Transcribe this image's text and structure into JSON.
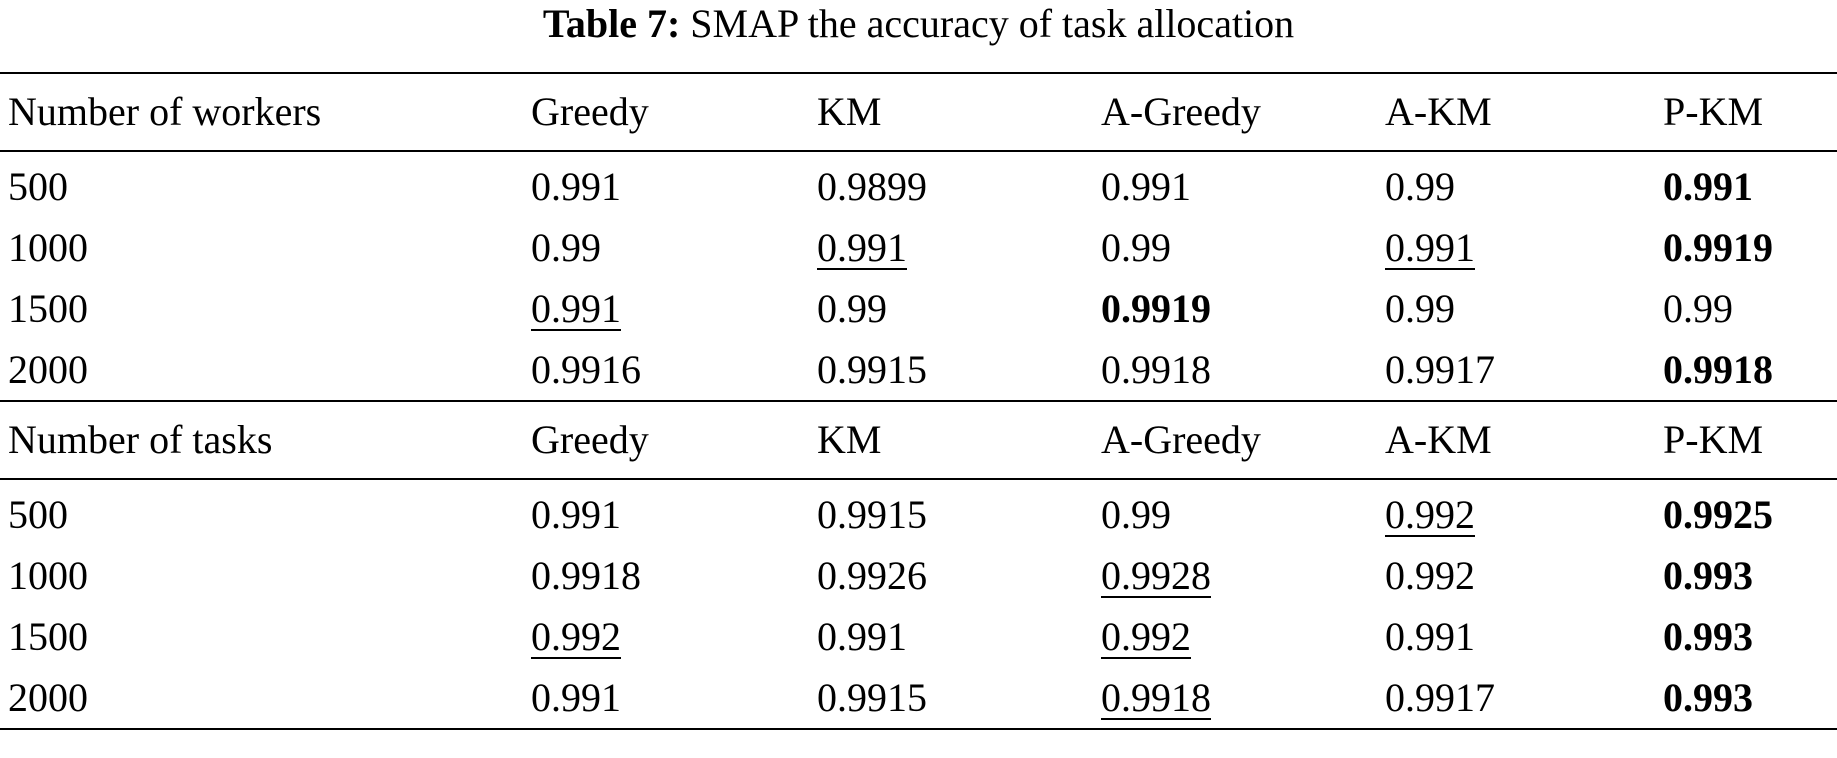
{
  "caption": {
    "label": "Table 7:",
    "text": "SMAP the accuracy of task allocation"
  },
  "table": {
    "groups": [
      {
        "header": [
          "Number of workers",
          "Greedy",
          "KM",
          "A-Greedy",
          "A-KM",
          "P-KM"
        ],
        "rows": [
          {
            "cells": [
              "500",
              "0.991",
              "0.9899",
              "0.991",
              "0.99",
              "0.991"
            ],
            "bold": [
              5
            ],
            "underline": []
          },
          {
            "cells": [
              "1000",
              "0.99",
              "0.991",
              "0.99",
              "0.991",
              "0.9919"
            ],
            "bold": [
              5
            ],
            "underline": [
              2,
              4
            ]
          },
          {
            "cells": [
              "1500",
              "0.991",
              "0.99",
              "0.9919",
              "0.99",
              "0.99"
            ],
            "bold": [
              3
            ],
            "underline": [
              1
            ]
          },
          {
            "cells": [
              "2000",
              "0.9916",
              "0.9915",
              "0.9918",
              "0.9917",
              "0.9918"
            ],
            "bold": [
              5
            ],
            "underline": []
          }
        ]
      },
      {
        "header": [
          "Number of tasks",
          "Greedy",
          "KM",
          "A-Greedy",
          "A-KM",
          "P-KM"
        ],
        "rows": [
          {
            "cells": [
              "500",
              "0.991",
              "0.9915",
              "0.99",
              "0.992",
              "0.9925"
            ],
            "bold": [
              5
            ],
            "underline": [
              4
            ]
          },
          {
            "cells": [
              "1000",
              "0.9918",
              "0.9926",
              "0.9928",
              "0.992",
              "0.993"
            ],
            "bold": [
              5
            ],
            "underline": [
              3
            ]
          },
          {
            "cells": [
              "1500",
              "0.992",
              "0.991",
              "0.992",
              "0.991",
              "0.993"
            ],
            "bold": [
              5
            ],
            "underline": [
              1,
              3
            ]
          },
          {
            "cells": [
              "2000",
              "0.991",
              "0.9915",
              "0.9918",
              "0.9917",
              "0.993"
            ],
            "bold": [
              5
            ],
            "underline": [
              3
            ]
          }
        ]
      }
    ]
  }
}
